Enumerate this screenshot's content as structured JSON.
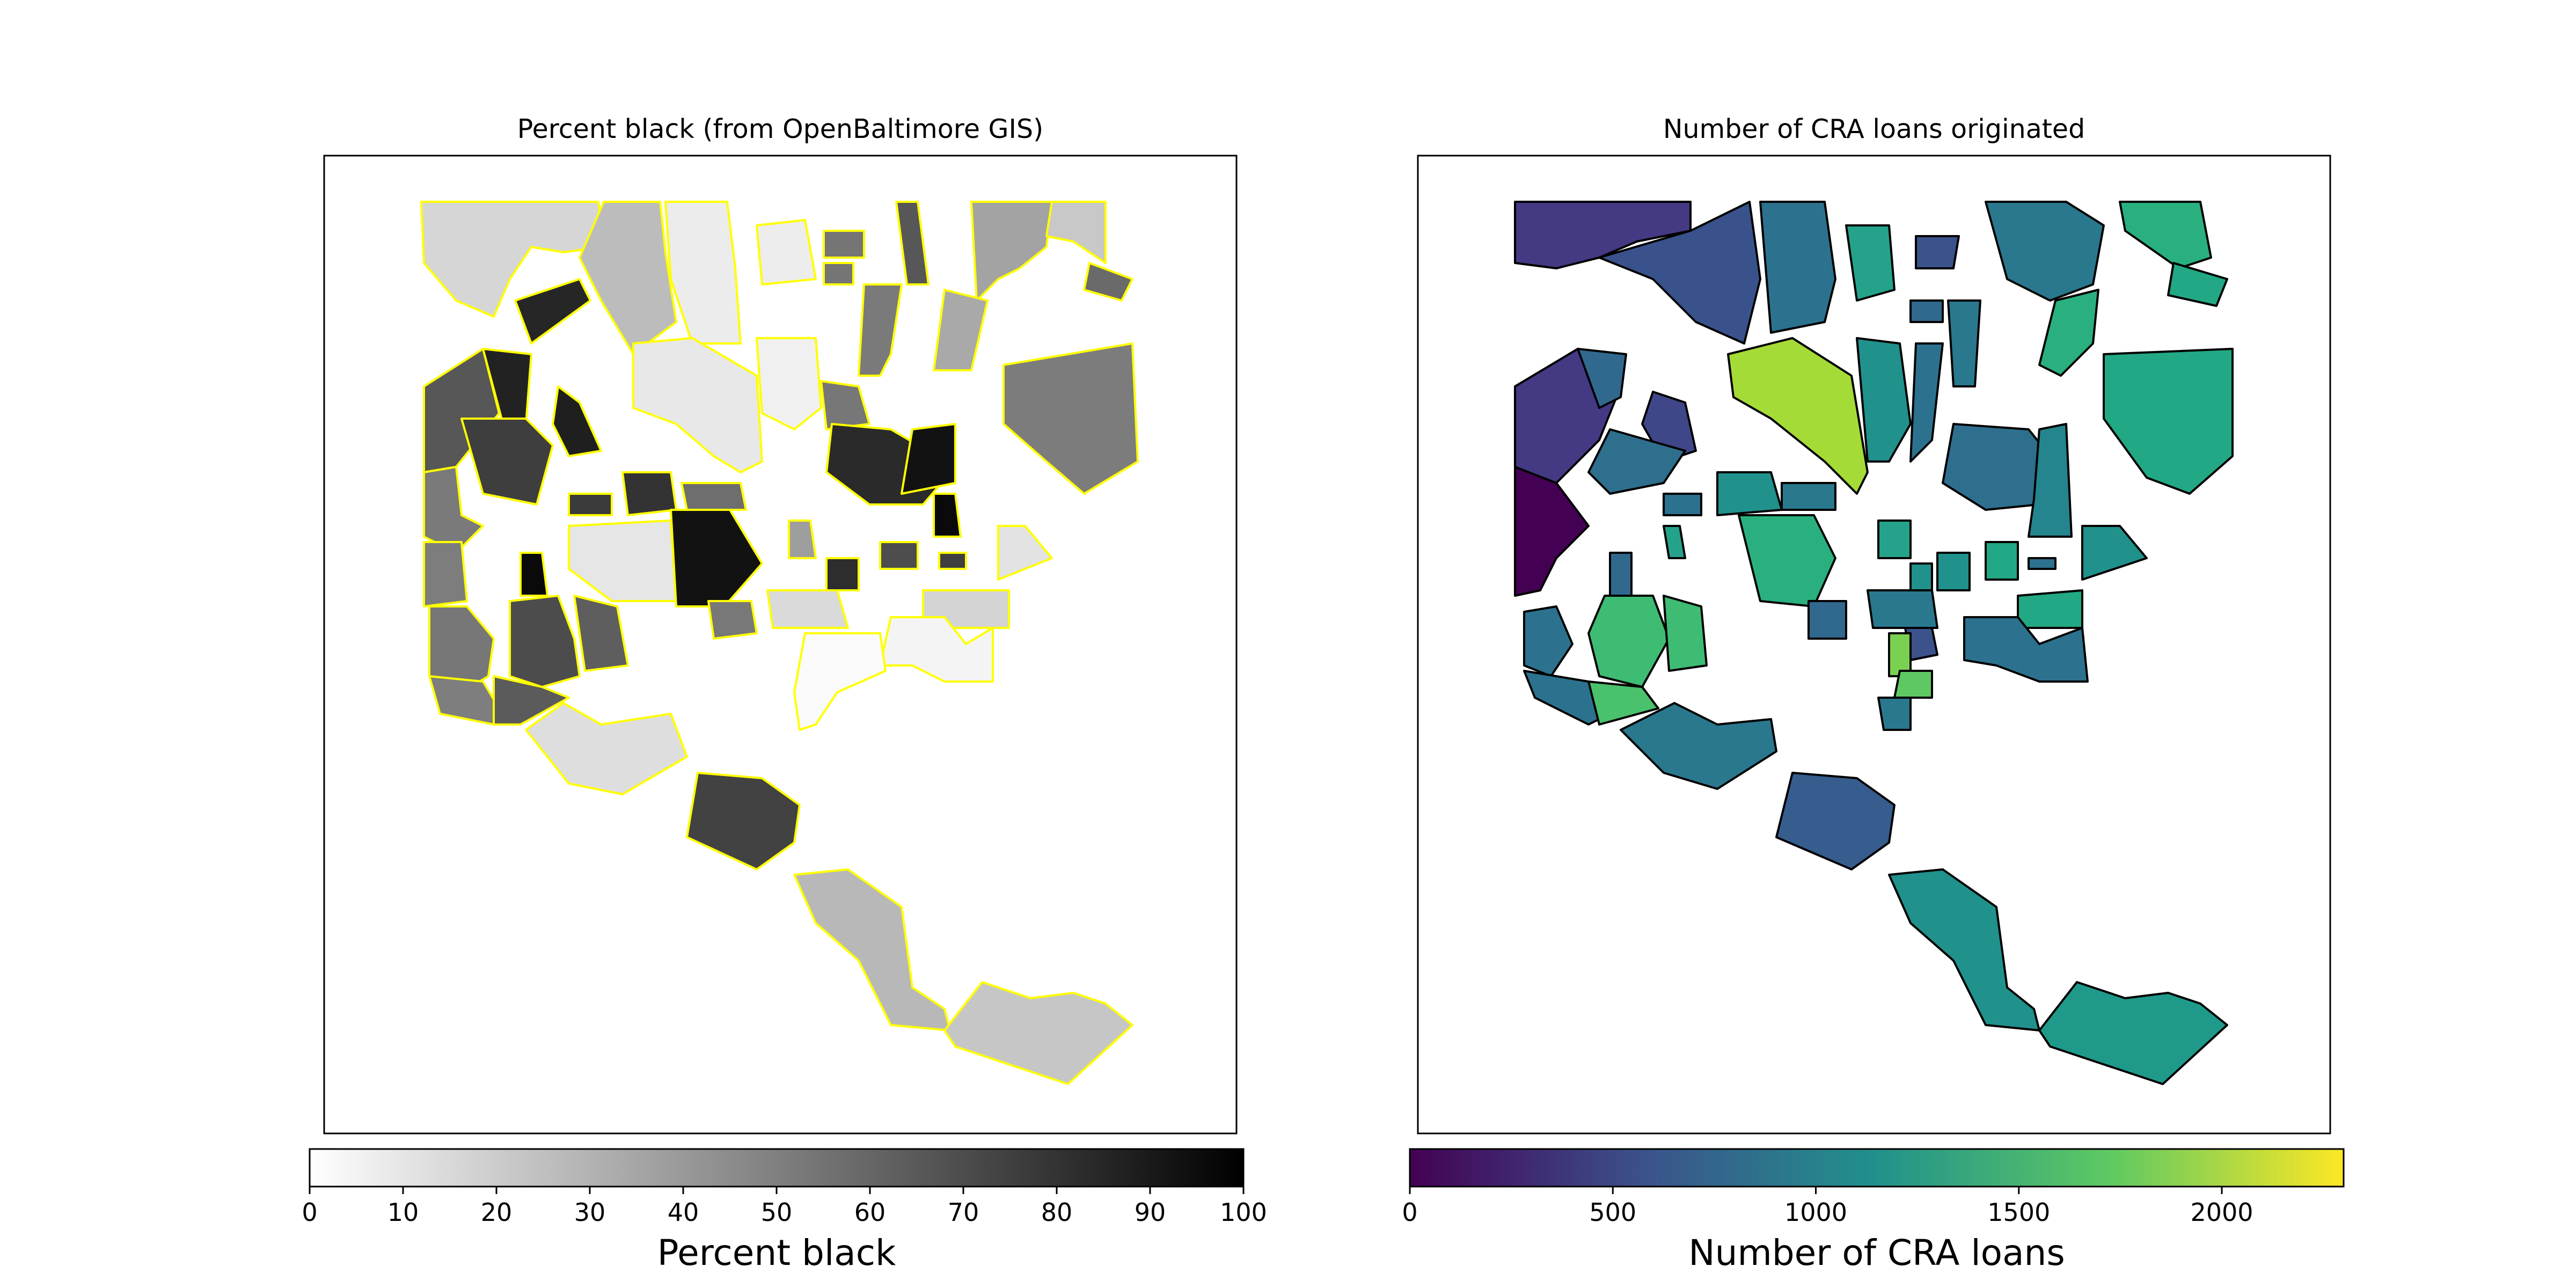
{
  "panels": [
    {
      "title": "Percent black (from OpenBaltimore GIS)",
      "colorbar_label": "Percent black",
      "colorbar_ticks": [
        "0",
        "10",
        "20",
        "30",
        "40",
        "50",
        "60",
        "70",
        "80",
        "90",
        "100"
      ],
      "colorbar_range": [
        0,
        100
      ],
      "colormap": [
        "#ffffff",
        "#000000"
      ],
      "edge_color": "#ffff00"
    },
    {
      "title": "Number of CRA loans originated",
      "colorbar_label": "Number of CRA loans",
      "colorbar_ticks": [
        "0",
        "500",
        "1000",
        "1500",
        "2000"
      ],
      "colorbar_tick_values": [
        0,
        500,
        1000,
        1500,
        2000
      ],
      "colorbar_range": [
        0,
        2300
      ],
      "colormap": [
        "#440154",
        "#3b528b",
        "#21918c",
        "#5ec962",
        "#fde725"
      ],
      "edge_color": "#000000"
    }
  ]
}
